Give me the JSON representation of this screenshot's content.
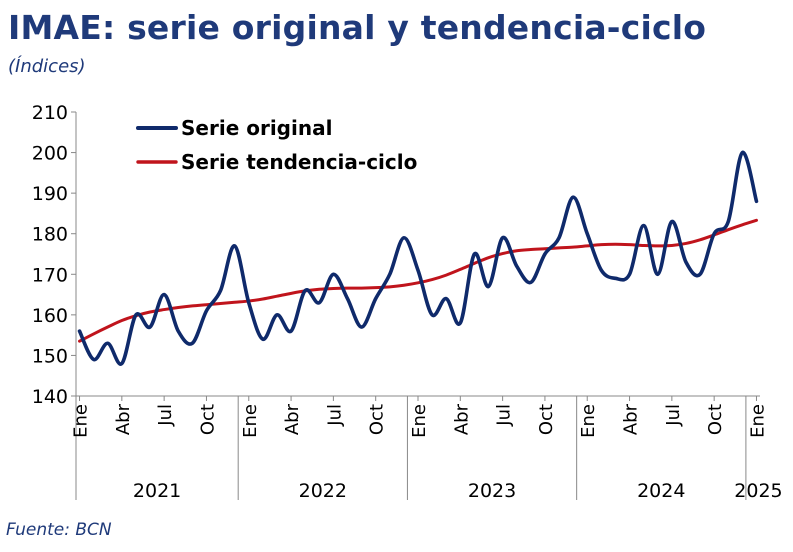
{
  "header": {
    "title": "IMAE: serie original y tendencia-ciclo",
    "subtitle": "(Índices)"
  },
  "footer": {
    "source": "Fuente: BCN"
  },
  "chart_data": {
    "type": "line",
    "title": "IMAE: serie original y tendencia-ciclo",
    "subtitle": "(Índices)",
    "ylabel": "",
    "xlabel": "",
    "ylim": [
      140,
      210
    ],
    "yticks": [
      140,
      150,
      160,
      170,
      180,
      190,
      200,
      210
    ],
    "grid": false,
    "legend_position": "top-left",
    "x": [
      "2021-01",
      "2021-02",
      "2021-03",
      "2021-04",
      "2021-05",
      "2021-06",
      "2021-07",
      "2021-08",
      "2021-09",
      "2021-10",
      "2021-11",
      "2021-12",
      "2022-01",
      "2022-02",
      "2022-03",
      "2022-04",
      "2022-05",
      "2022-06",
      "2022-07",
      "2022-08",
      "2022-09",
      "2022-10",
      "2022-11",
      "2022-12",
      "2023-01",
      "2023-02",
      "2023-03",
      "2023-04",
      "2023-05",
      "2023-06",
      "2023-07",
      "2023-08",
      "2023-09",
      "2023-10",
      "2023-11",
      "2023-12",
      "2024-01",
      "2024-02",
      "2024-03",
      "2024-04",
      "2024-05",
      "2024-06",
      "2024-07",
      "2024-08",
      "2024-09",
      "2024-10",
      "2024-11",
      "2024-12",
      "2025-01"
    ],
    "x_tick_labels": [
      "Ene",
      "Abr",
      "Jul",
      "Oct",
      "Ene",
      "Abr",
      "Jul",
      "Oct",
      "Ene",
      "Abr",
      "Jul",
      "Oct",
      "Ene",
      "Abr",
      "Jul",
      "Oct",
      "Ene"
    ],
    "x_tick_months": [
      "2021-01",
      "2021-04",
      "2021-07",
      "2021-10",
      "2022-01",
      "2022-04",
      "2022-07",
      "2022-10",
      "2023-01",
      "2023-04",
      "2023-07",
      "2023-10",
      "2024-01",
      "2024-04",
      "2024-07",
      "2024-10",
      "2025-01"
    ],
    "year_labels": [
      "2021",
      "2022",
      "2023",
      "2024",
      "2025"
    ],
    "series": [
      {
        "name": "Serie original",
        "color": "#0f2a6b",
        "values": [
          156,
          149,
          153,
          148,
          160,
          157,
          165,
          156,
          153,
          161,
          166,
          177,
          163,
          154,
          160,
          156,
          166,
          163,
          170,
          164,
          157,
          164,
          170,
          179,
          171,
          160,
          164,
          158,
          175,
          167,
          179,
          172,
          168,
          175,
          179,
          189,
          180,
          171,
          169,
          170,
          182,
          170,
          183,
          173,
          170,
          180,
          183,
          200,
          188
        ]
      },
      {
        "name": "Serie tendencia-ciclo",
        "color": "#c0141c",
        "values": [
          153.5,
          155.3,
          157.0,
          158.6,
          159.8,
          160.7,
          161.3,
          161.8,
          162.2,
          162.5,
          162.8,
          163.1,
          163.4,
          163.9,
          164.6,
          165.3,
          165.9,
          166.3,
          166.5,
          166.6,
          166.6,
          166.7,
          166.9,
          167.3,
          167.9,
          168.7,
          169.8,
          171.2,
          172.7,
          174.1,
          175.1,
          175.8,
          176.1,
          176.3,
          176.5,
          176.7,
          177.0,
          177.3,
          177.4,
          177.3,
          177.1,
          177.0,
          177.1,
          177.6,
          178.5,
          179.7,
          181.0,
          182.2,
          183.3
        ]
      }
    ]
  }
}
